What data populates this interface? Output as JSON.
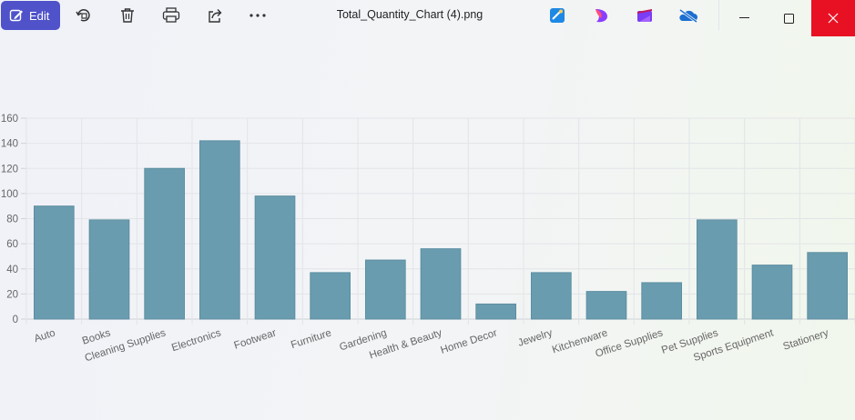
{
  "toolbar": {
    "edit_label": "Edit",
    "file_title": "Total_Quantity_Chart (4).png",
    "tools": [
      "rotate-icon",
      "delete-icon",
      "print-icon",
      "share-icon",
      "more-icon"
    ],
    "apps": [
      "designer-icon",
      "clipchamp-ai-icon",
      "clipchamp-icon",
      "onedrive-icon"
    ],
    "accent": "#4f52c9",
    "close_color": "#e81123"
  },
  "chart_data": {
    "type": "bar",
    "categories": [
      "Auto",
      "Books",
      "Cleaning Supplies",
      "Electronics",
      "Footwear",
      "Furniture",
      "Gardening",
      "Health & Beauty",
      "Home Decor",
      "Jewelry",
      "Kitchenware",
      "Office Supplies",
      "Pet Supplies",
      "Sports Equipment",
      "Stationery"
    ],
    "values": [
      90,
      79,
      120,
      142,
      98,
      37,
      47,
      56,
      12,
      37,
      22,
      29,
      79,
      43,
      53
    ],
    "yticks": [
      "0",
      "20",
      "40",
      "60",
      "80",
      "100",
      "120",
      "140",
      "160"
    ],
    "ylim": [
      0,
      160
    ],
    "grid": true,
    "bar_color": "#6a9caf"
  }
}
